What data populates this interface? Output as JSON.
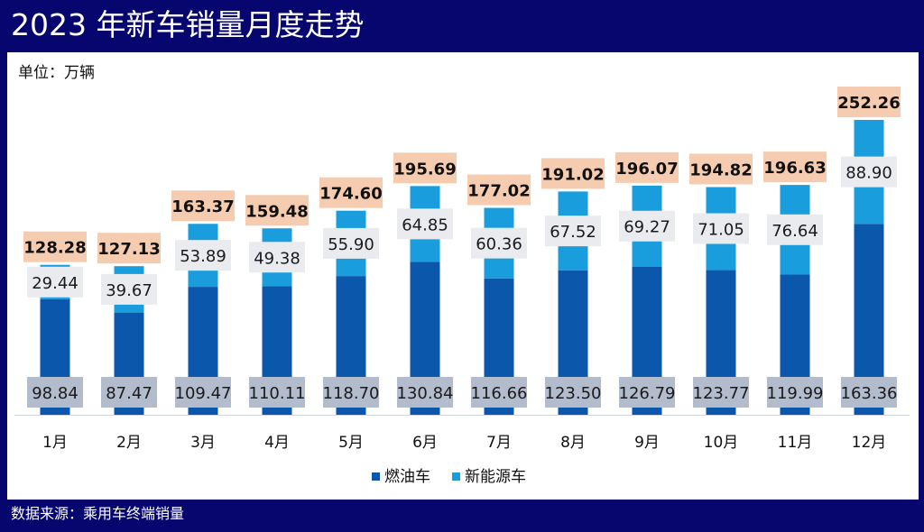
{
  "header": {
    "title": "2023 年新车销量月度走势"
  },
  "unit_label": "单位：万辆",
  "footer": {
    "source": "数据来源：乘用车终端销量"
  },
  "colors": {
    "fuel": "#0a57ab",
    "nev": "#199ddd",
    "total_label_bg": "#f6ccb1",
    "nev_label_bg": "#e9ebef",
    "fuel_label_bg": "#b3bccd",
    "background": "#06066e"
  },
  "chart_data": {
    "type": "bar",
    "stacked": true,
    "categories": [
      "1月",
      "2月",
      "3月",
      "4月",
      "5月",
      "6月",
      "7月",
      "8月",
      "9月",
      "10月",
      "11月",
      "12月"
    ],
    "series": [
      {
        "name": "燃油车",
        "values": [
          98.84,
          87.47,
          109.47,
          110.11,
          118.7,
          130.84,
          116.66,
          123.5,
          126.79,
          123.77,
          119.99,
          163.36
        ]
      },
      {
        "name": "新能源车",
        "values": [
          29.44,
          39.67,
          53.89,
          49.38,
          55.9,
          64.85,
          60.36,
          67.52,
          69.27,
          71.05,
          76.64,
          88.9
        ]
      }
    ],
    "totals": [
      128.28,
      127.13,
      163.37,
      159.48,
      174.6,
      195.69,
      177.02,
      191.02,
      196.07,
      194.82,
      196.63,
      252.26
    ],
    "ylim": [
      0,
      270
    ],
    "grid": false,
    "legend_position": "bottom"
  }
}
